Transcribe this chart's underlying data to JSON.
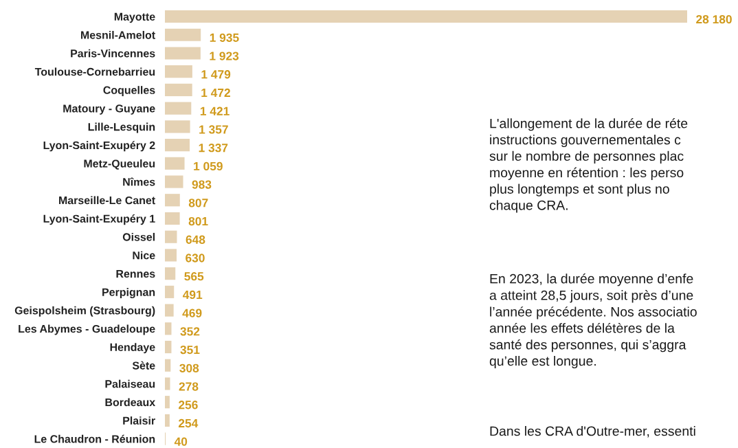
{
  "chart_data": {
    "type": "bar",
    "orientation": "horizontal",
    "categories": [
      "Mayotte",
      "Mesnil-Amelot",
      "Paris-Vincennes",
      "Toulouse-Cornebarrieu",
      "Coquelles",
      "Matoury - Guyane",
      "Lille-Lesquin",
      "Lyon-Saint-Exupéry 2",
      "Metz-Queuleu",
      "Nîmes",
      "Marseille-Le Canet",
      "Lyon-Saint-Exupéry 1",
      "Oissel",
      "Nice",
      "Rennes",
      "Perpignan",
      "Geispolsheim (Strasbourg)",
      "Les Abymes - Guadeloupe",
      "Hendaye",
      "Sète",
      "Palaiseau",
      "Bordeaux",
      "Plaisir",
      "Le Chaudron - Réunion"
    ],
    "values": [
      28180,
      1935,
      1923,
      1479,
      1472,
      1421,
      1357,
      1337,
      1059,
      983,
      807,
      801,
      648,
      630,
      565,
      491,
      469,
      352,
      351,
      308,
      278,
      256,
      254,
      40
    ],
    "value_labels": [
      "28 180",
      "1 935",
      "1 923",
      "1 479",
      "1 472",
      "1 421",
      "1 357",
      "1 337",
      "1 059",
      "983",
      "807",
      "801",
      "648",
      "630",
      "565",
      "491",
      "469",
      "352",
      "351",
      "308",
      "278",
      "256",
      "254",
      "40"
    ],
    "color": "#e5d2b4",
    "tick_labels": "y",
    "grid": false,
    "legend": false,
    "annotations": [
      "L'allongement de la durée de réte\ninstructions gouvernementales c\nsur le nombre de personnes plac\nmoyenne en rétention : les perso\nplus longtemps et sont plus no\nchaque CRA.",
      "En 2023, la durée moyenne d’enfe\na atteint 28,5 jours, soit près d’une\nl’année précédente. Nos associatio\nannée les effets délétères de la\nsanté des personnes, qui s’aggra\nqu’elle est longue.",
      "Dans les CRA d'Outre-mer, essenti"
    ]
  }
}
